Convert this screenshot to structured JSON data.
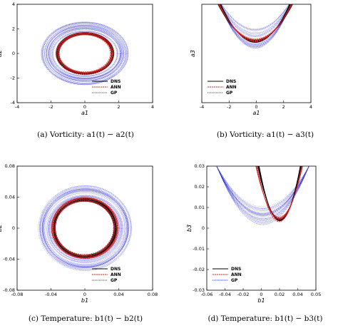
{
  "colors": {
    "dns": "#000000",
    "ann": "#d62020",
    "gp": "#2c2cd6"
  },
  "chart_data": [
    {
      "type": "line",
      "caption": "(a)  Vorticity:  a1(t) − a2(t)",
      "xlabel": "a1",
      "ylabel": "a2",
      "xlim": [
        -4,
        4
      ],
      "ylim": [
        -4,
        4
      ],
      "xticks": [
        "-4",
        "-2",
        "0",
        "2",
        "4"
      ],
      "yticks": [
        "-4",
        "-2",
        "0",
        "2",
        "4"
      ],
      "legend": "bottom-right",
      "series": [
        {
          "name": "DNS",
          "shape": "ring",
          "cx": 0,
          "cy": 0,
          "rx": [
            1.55,
            1.7
          ],
          "ry": [
            1.55,
            1.7
          ]
        },
        {
          "name": "ANN",
          "shape": "ring",
          "cx": 0,
          "cy": 0,
          "rx": [
            1.5,
            1.72
          ],
          "ry": [
            1.5,
            1.72
          ]
        },
        {
          "name": "GP",
          "shape": "ring",
          "cx": 0,
          "cy": 0,
          "rx": [
            1.9,
            2.6
          ],
          "ry": [
            1.8,
            2.6
          ]
        }
      ]
    },
    {
      "type": "line",
      "caption": "(b)  Vorticity:  a1(t) − a3(t)",
      "xlabel": "a1",
      "ylabel": "a3",
      "xlim": [
        -4,
        4
      ],
      "ylim": [
        -2,
        1
      ],
      "xticks": [
        "-4",
        "-2",
        "0",
        "2",
        "4"
      ],
      "yticks": [],
      "legend": "bottom-left",
      "series": [
        {
          "name": "DNS",
          "shape": "parabola",
          "k": [
            -1.15,
            -1.05
          ],
          "c": 0.5
        },
        {
          "name": "ANN",
          "shape": "parabola",
          "k": [
            -1.2,
            -1.0
          ],
          "c": 0.5
        },
        {
          "name": "GP",
          "shape": "parabola",
          "k": [
            -1.4,
            -0.6
          ],
          "c": 0.5
        }
      ]
    },
    {
      "type": "line",
      "caption": "(c)  Temperature:  b1(t) − b2(t)",
      "xlabel": "b1",
      "ylabel": "b2",
      "xlim": [
        -0.08,
        0.08
      ],
      "ylim": [
        -0.08,
        0.08
      ],
      "xticks": [
        "-0.08",
        "-0.04",
        "0",
        "0.04",
        "0.08"
      ],
      "yticks": [
        "-0.08",
        "-0.04",
        "0",
        "0.04",
        "0.08"
      ],
      "legend": "bottom-right",
      "series": [
        {
          "name": "DNS",
          "shape": "ring",
          "cx": 0,
          "cy": 0,
          "rx": [
            0.035,
            0.038
          ],
          "ry": [
            0.035,
            0.039
          ]
        },
        {
          "name": "ANN",
          "shape": "ring",
          "cx": 0,
          "cy": 0,
          "rx": [
            0.034,
            0.04
          ],
          "ry": [
            0.034,
            0.04
          ]
        },
        {
          "name": "GP",
          "shape": "ring",
          "cx": 0,
          "cy": 0,
          "rx": [
            0.04,
            0.055
          ],
          "ry": [
            0.038,
            0.055
          ]
        }
      ]
    },
    {
      "type": "line",
      "caption": "(d)  Temperature:  b1(t) − b3(t)",
      "xlabel": "b1",
      "ylabel": "b3",
      "xlim": [
        -0.06,
        0.05
      ],
      "ylim": [
        -0.03,
        0.03
      ],
      "xticks": [
        "-0.06",
        "-0.04",
        "-0.02",
        "0",
        "0.02",
        "0.04",
        "0.05"
      ],
      "yticks": [
        "-0.03",
        "-0.02",
        "-0.01",
        "0",
        "0.01",
        "0.02",
        "0.03"
      ],
      "legend": "bottom-left",
      "series": [
        {
          "name": "DNS",
          "shape": "parabola",
          "k": [
            -1.05,
            -0.95
          ],
          "c": 0.42,
          "xr": [
            -0.01,
            0.037
          ]
        },
        {
          "name": "ANN",
          "shape": "parabola",
          "k": [
            -1.1,
            -0.9
          ],
          "c": 0.42,
          "xr": [
            -0.012,
            0.038
          ]
        },
        {
          "name": "GP",
          "shape": "parabola",
          "k": [
            -1.25,
            -0.55
          ],
          "c": 0.42,
          "xr": [
            -0.055,
            0.048
          ]
        }
      ]
    }
  ]
}
